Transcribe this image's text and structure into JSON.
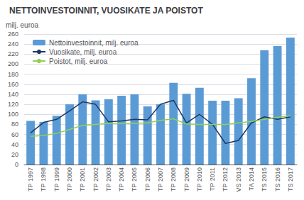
{
  "chart_data": {
    "type": "bar",
    "title": "NETTOINVESTOINNIT, VUOSIKATE JA POISTOT",
    "ylabel": "milj. euroa",
    "categories": [
      "TP 1997",
      "TP 1998",
      "TP 1999",
      "TP 2000",
      "TP 2001",
      "TP 2002",
      "TP 2003",
      "TP 2004",
      "TP 2005",
      "TP 2006",
      "TP 2007",
      "TP 2008",
      "TP 2009",
      "TP 2010",
      "TP 2011",
      "TP 2012",
      "VS 2013",
      "TA 2014",
      "TS 2015",
      "TS 2016",
      "TS 2017"
    ],
    "series": [
      {
        "name": "Nettoinvestoinnit, milj. euroa",
        "type": "bar",
        "color": "#5b9bd5",
        "values": [
          87,
          85,
          97,
          120,
          140,
          128,
          130,
          137,
          140,
          116,
          120,
          163,
          141,
          153,
          127,
          127,
          132,
          172,
          228,
          236,
          253
        ]
      },
      {
        "name": "Vuosikate, milj. euroa",
        "type": "line",
        "color": "#1f3864",
        "values": [
          63,
          84,
          90,
          107,
          125,
          120,
          85,
          87,
          90,
          89,
          120,
          128,
          83,
          100,
          80,
          42,
          48,
          83,
          95,
          90,
          95
        ]
      },
      {
        "name": "Poistot, milj. euroa",
        "type": "line",
        "color": "#92d050",
        "values": [
          56,
          58,
          62,
          70,
          78,
          80,
          82,
          82,
          82,
          83,
          88,
          91,
          81,
          80,
          80,
          80,
          83,
          86,
          90,
          94,
          97
        ]
      }
    ],
    "ylim": [
      0,
      260
    ],
    "yticks": [
      0,
      20,
      40,
      60,
      80,
      100,
      120,
      140,
      160,
      180,
      200,
      220,
      240,
      260
    ],
    "grid": true,
    "legend": "upper left"
  }
}
